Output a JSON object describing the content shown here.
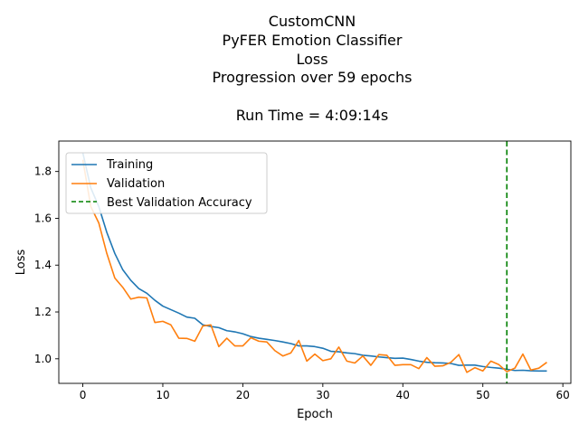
{
  "chart_data": {
    "type": "line",
    "title_lines": [
      "CustomCNN",
      "PyFER Emotion Classifier",
      "Loss",
      "Progression over 59 epochs",
      "",
      "Run Time = 4:09:14s"
    ],
    "xlabel": "Epoch",
    "ylabel": "Loss",
    "xlim": [
      -3,
      61
    ],
    "ylim": [
      0.895,
      1.93
    ],
    "xticks": [
      0,
      10,
      20,
      30,
      40,
      50,
      60
    ],
    "yticks": [
      1.0,
      1.2,
      1.4,
      1.6,
      1.8
    ],
    "ytick_labels": [
      "1.0",
      "1.2",
      "1.4",
      "1.6",
      "1.8"
    ],
    "legend_position": "upper-left",
    "series": [
      {
        "name": "Training",
        "color": "#1f77b4",
        "style": "solid",
        "x": [
          0,
          1,
          2,
          3,
          4,
          5,
          6,
          7,
          8,
          9,
          10,
          11,
          12,
          13,
          14,
          15,
          16,
          17,
          18,
          19,
          20,
          21,
          22,
          23,
          24,
          25,
          26,
          27,
          28,
          29,
          30,
          31,
          32,
          33,
          34,
          35,
          36,
          37,
          38,
          39,
          40,
          41,
          42,
          43,
          44,
          45,
          46,
          47,
          48,
          49,
          50,
          51,
          52,
          53,
          54,
          55,
          56,
          57,
          58
        ],
        "values": [
          1.88,
          1.73,
          1.65,
          1.54,
          1.45,
          1.38,
          1.335,
          1.3,
          1.28,
          1.25,
          1.225,
          1.21,
          1.195,
          1.178,
          1.173,
          1.145,
          1.138,
          1.133,
          1.12,
          1.115,
          1.107,
          1.095,
          1.088,
          1.083,
          1.078,
          1.072,
          1.065,
          1.055,
          1.055,
          1.052,
          1.045,
          1.032,
          1.03,
          1.025,
          1.022,
          1.015,
          1.012,
          1.008,
          1.005,
          1.002,
          1.003,
          0.997,
          0.99,
          0.985,
          0.983,
          0.982,
          0.98,
          0.972,
          0.973,
          0.973,
          0.967,
          0.963,
          0.96,
          0.955,
          0.95,
          0.951,
          0.949,
          0.948,
          0.948
        ]
      },
      {
        "name": "Validation",
        "color": "#ff7f0e",
        "style": "solid",
        "x": [
          0,
          1,
          2,
          3,
          4,
          5,
          6,
          7,
          8,
          9,
          10,
          11,
          12,
          13,
          14,
          15,
          16,
          17,
          18,
          19,
          20,
          21,
          22,
          23,
          24,
          25,
          26,
          27,
          28,
          29,
          30,
          31,
          32,
          33,
          34,
          35,
          36,
          37,
          38,
          39,
          40,
          41,
          42,
          43,
          44,
          45,
          46,
          47,
          48,
          49,
          50,
          51,
          52,
          53,
          54,
          55,
          56,
          57,
          58
        ],
        "values": [
          1.85,
          1.65,
          1.58,
          1.45,
          1.345,
          1.305,
          1.255,
          1.263,
          1.26,
          1.155,
          1.16,
          1.145,
          1.088,
          1.087,
          1.075,
          1.14,
          1.145,
          1.052,
          1.088,
          1.055,
          1.055,
          1.09,
          1.075,
          1.072,
          1.035,
          1.012,
          1.025,
          1.078,
          0.99,
          1.02,
          0.992,
          1.0,
          1.05,
          0.99,
          0.982,
          1.012,
          0.972,
          1.018,
          1.015,
          0.972,
          0.975,
          0.975,
          0.958,
          1.005,
          0.968,
          0.97,
          0.985,
          1.018,
          0.942,
          0.962,
          0.948,
          0.99,
          0.975,
          0.945,
          0.96,
          1.02,
          0.952,
          0.96,
          0.985
        ]
      },
      {
        "name": "Best Validation Accuracy",
        "color": "#008000",
        "style": "dashed",
        "type": "vline",
        "x_value": 53
      }
    ]
  }
}
